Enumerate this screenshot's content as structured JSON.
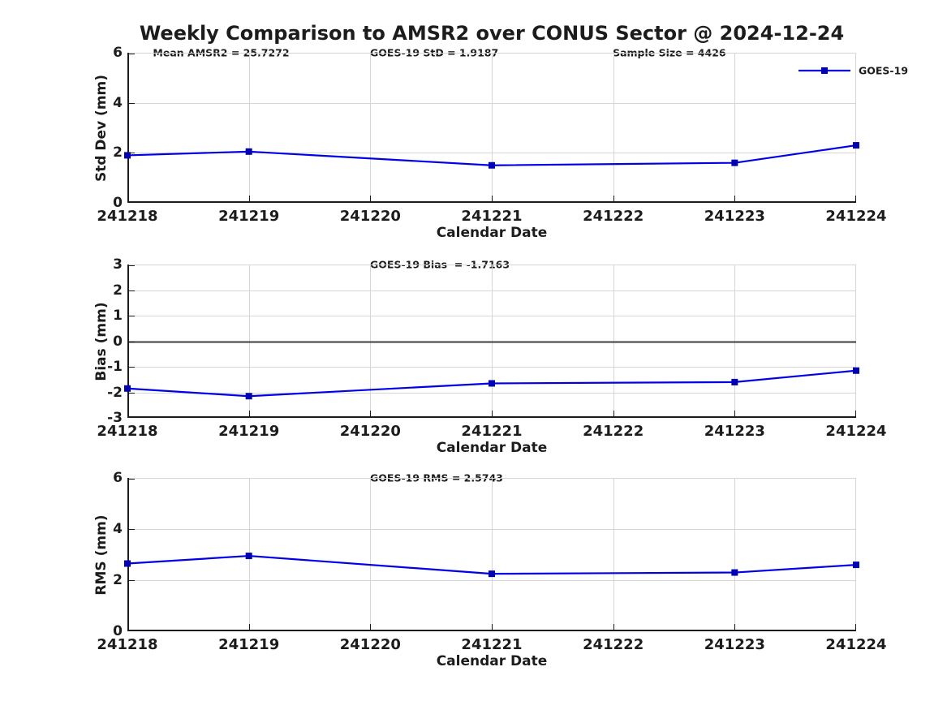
{
  "figure": {
    "title": "Weekly Comparison to AMSR2 over CONUS Sector @ 2024-12-24",
    "xlabel": "Calendar Date",
    "xtick_labels": [
      "241218",
      "241219",
      "241220",
      "241221",
      "241222",
      "241223",
      "241224"
    ],
    "legend": {
      "label": "GOES-19",
      "position": "top-right"
    }
  },
  "colors": {
    "line": "#0000e6",
    "marker": "#0000b4",
    "grid": "#d6d6d6",
    "axis": "#1c1c1c",
    "zero_line": "#3d3d3d",
    "text": "#1c1c1c",
    "background": "#ffffff"
  },
  "chart_data": [
    {
      "type": "line",
      "name": "stddev",
      "series": "GOES-19",
      "ylabel": "Std Dev (mm)",
      "xlabel": "Calendar Date",
      "ylim": [
        0,
        6
      ],
      "yticks": [
        0,
        2,
        4,
        6
      ],
      "x": [
        241218,
        241219,
        241221,
        241223,
        241224
      ],
      "y": [
        1.9,
        2.05,
        1.5,
        1.6,
        2.3
      ],
      "annotations": [
        {
          "text": "Mean AMSR2 = 25.7272",
          "fx": 0.035
        },
        {
          "text": "GOES-19 StD = 1.9187",
          "fx": 0.333
        },
        {
          "text": "Sample Size = 4426",
          "fx": 0.666
        }
      ],
      "show_legend": true
    },
    {
      "type": "line",
      "name": "bias",
      "series": "GOES-19",
      "ylabel": "Bias (mm)",
      "xlabel": "Calendar Date",
      "ylim": [
        -3,
        3
      ],
      "yticks": [
        3,
        2,
        1,
        0,
        -1,
        -2,
        -3
      ],
      "zero_line": true,
      "x": [
        241218,
        241219,
        241221,
        241223,
        241224
      ],
      "y": [
        -1.85,
        -2.15,
        -1.65,
        -1.6,
        -1.15
      ],
      "annotations": [
        {
          "text": "GOES-19 Bias  = -1.7163",
          "fx": 0.333
        }
      ],
      "show_legend": false
    },
    {
      "type": "line",
      "name": "rms",
      "series": "GOES-19",
      "ylabel": "RMS (mm)",
      "xlabel": "Calendar Date",
      "ylim": [
        0,
        6
      ],
      "yticks": [
        0,
        2,
        4,
        6
      ],
      "x": [
        241218,
        241219,
        241221,
        241223,
        241224
      ],
      "y": [
        2.65,
        2.95,
        2.25,
        2.3,
        2.6
      ],
      "annotations": [
        {
          "text": "GOES-19 RMS = 2.5743",
          "fx": 0.333
        }
      ],
      "show_legend": false
    }
  ]
}
